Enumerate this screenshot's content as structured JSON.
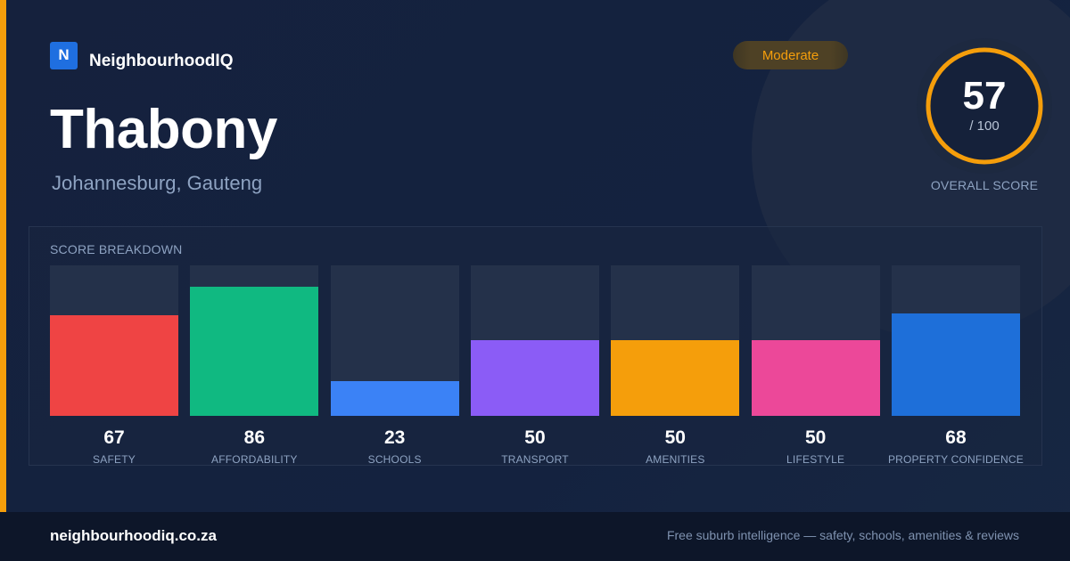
{
  "brand": {
    "logo_letter": "N",
    "name": "NeighbourhoodIQ"
  },
  "suburb": {
    "name": "Thabony",
    "location": "Johannesburg, Gauteng"
  },
  "rating_badge": {
    "label": "Moderate",
    "color": "#f59e0b"
  },
  "overall": {
    "score": "57",
    "out_of": "/ 100",
    "caption": "OVERALL SCORE",
    "fraction": 0.57,
    "ring_color": "#f59e0b"
  },
  "breakdown": {
    "title": "SCORE BREAKDOWN",
    "items": [
      {
        "label": "SAFETY",
        "value": "67",
        "score": 67,
        "color": "#ef4444"
      },
      {
        "label": "AFFORDABILITY",
        "value": "86",
        "score": 86,
        "color": "#10b981"
      },
      {
        "label": "SCHOOLS",
        "value": "23",
        "score": 23,
        "color": "#3b82f6"
      },
      {
        "label": "TRANSPORT",
        "value": "50",
        "score": 50,
        "color": "#8b5cf6"
      },
      {
        "label": "AMENITIES",
        "value": "50",
        "score": 50,
        "color": "#f59e0b"
      },
      {
        "label": "LIFESTYLE",
        "value": "50",
        "score": 50,
        "color": "#ec4899"
      },
      {
        "label": "PROPERTY CONFIDENCE",
        "value": "68",
        "score": 68,
        "color": "#1e6fd9"
      }
    ]
  },
  "footer": {
    "url": "neighbourhoodiq.co.za",
    "tagline": "Free suburb intelligence — safety, schools, amenities & reviews"
  }
}
